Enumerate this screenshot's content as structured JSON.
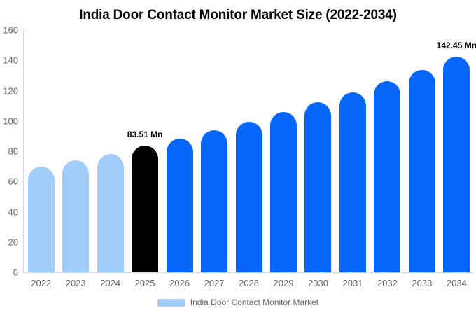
{
  "chart_data": {
    "type": "bar",
    "title": "India Door Contact Monitor Market Size (2022-2034)",
    "xlabel": "",
    "ylabel": "",
    "ylim": [
      0,
      160
    ],
    "yticks": [
      0,
      20,
      40,
      60,
      80,
      100,
      120,
      140,
      160
    ],
    "grid": false,
    "legend_position": "bottom-center",
    "unit": "Mn",
    "categories": [
      "2022",
      "2023",
      "2024",
      "2025",
      "2026",
      "2027",
      "2028",
      "2029",
      "2030",
      "2031",
      "2032",
      "2033",
      "2034"
    ],
    "series": [
      {
        "name": "India Door Contact Monitor Market",
        "values": [
          69.8,
          73.8,
          78.2,
          83.51,
          88.2,
          94.0,
          99.6,
          105.9,
          112.2,
          119.0,
          126.3,
          133.8,
          142.45
        ]
      }
    ],
    "bars": [
      {
        "year": "2022",
        "value": 69.8,
        "role": "historical"
      },
      {
        "year": "2023",
        "value": 73.8,
        "role": "historical"
      },
      {
        "year": "2024",
        "value": 78.2,
        "role": "historical"
      },
      {
        "year": "2025",
        "value": 83.51,
        "role": "highlight",
        "label": "83.51 Mn"
      },
      {
        "year": "2026",
        "value": 88.2,
        "role": "forecast"
      },
      {
        "year": "2027",
        "value": 94.0,
        "role": "forecast"
      },
      {
        "year": "2028",
        "value": 99.6,
        "role": "forecast"
      },
      {
        "year": "2029",
        "value": 105.9,
        "role": "forecast"
      },
      {
        "year": "2030",
        "value": 112.2,
        "role": "forecast"
      },
      {
        "year": "2031",
        "value": 119.0,
        "role": "forecast"
      },
      {
        "year": "2032",
        "value": 126.3,
        "role": "forecast"
      },
      {
        "year": "2033",
        "value": 133.8,
        "role": "forecast"
      },
      {
        "year": "2034",
        "value": 142.45,
        "role": "forecast",
        "label": "142.45 Mn"
      }
    ],
    "colors": {
      "historical": "#a2cdfa",
      "highlight": "#000000",
      "forecast": "#0667fa",
      "axis_text": "#666666",
      "axis_line": "#d6d6d6",
      "title_text": "#000000"
    },
    "legend": {
      "label": "India Door Contact Monitor Market",
      "swatch_color": "#a2cdfa"
    }
  }
}
